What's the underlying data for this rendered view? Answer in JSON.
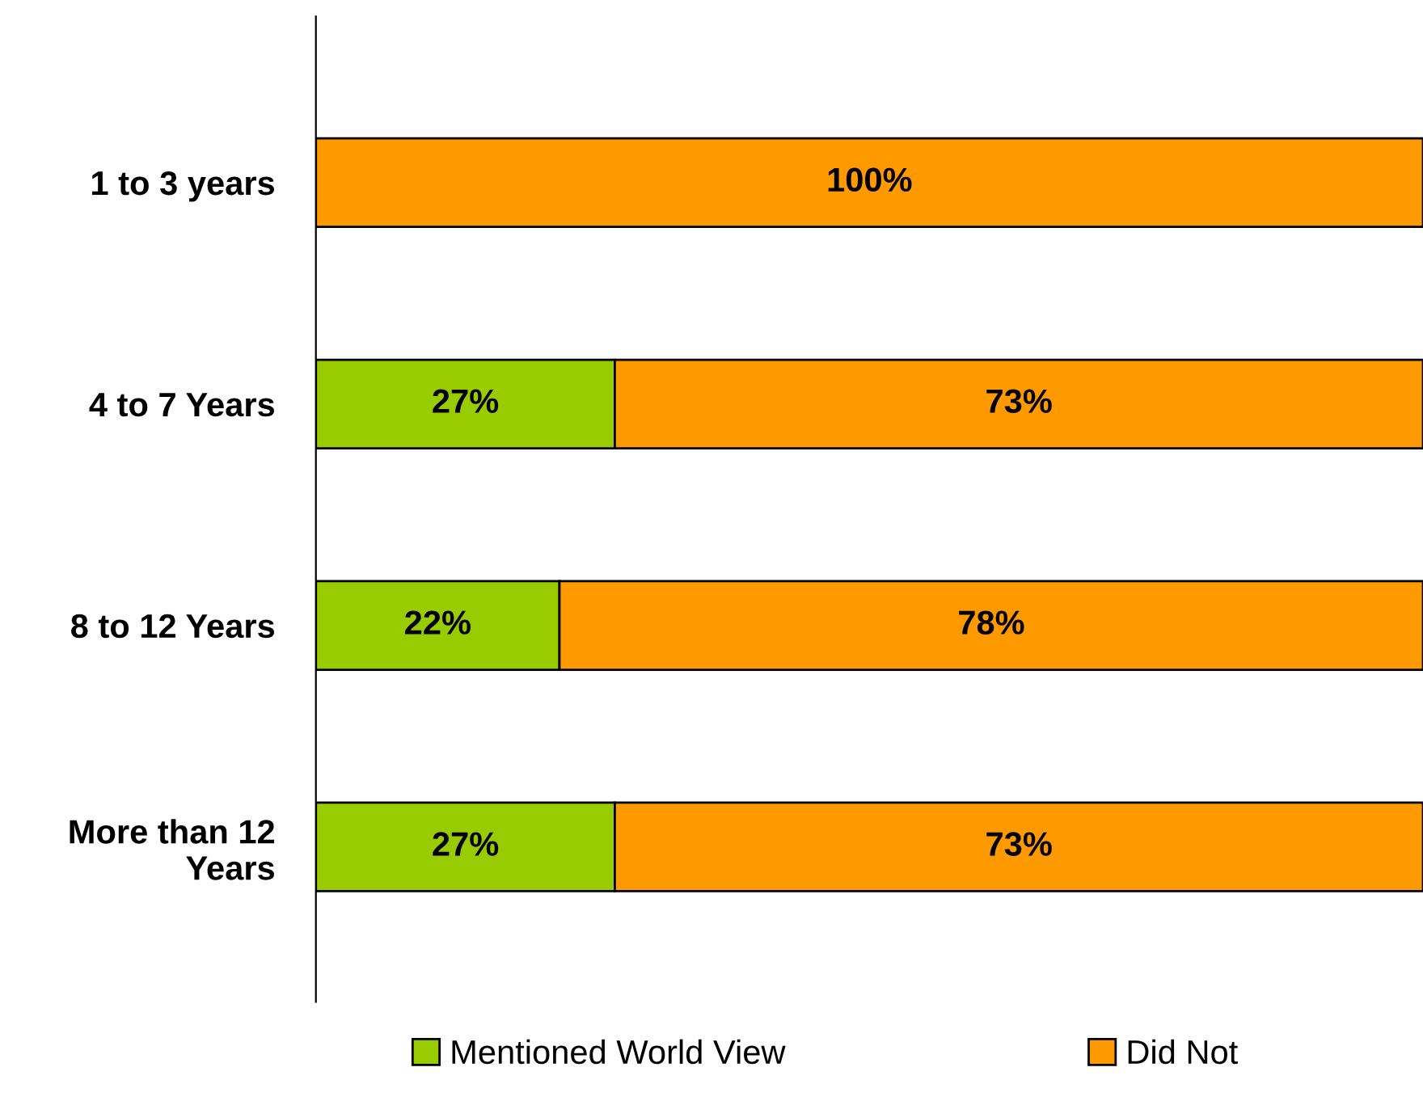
{
  "chart_data": {
    "type": "bar",
    "orientation": "horizontal",
    "stacked": true,
    "categories": [
      "1 to 3 years",
      "4 to 7 Years",
      "8 to 12 Years",
      "More than 12 Years"
    ],
    "series": [
      {
        "name": "Mentioned World View",
        "color": "#99cc00",
        "values": [
          0,
          27,
          22,
          27
        ],
        "value_labels": [
          null,
          "27%",
          "22%",
          "27%"
        ]
      },
      {
        "name": "Did Not",
        "color": "#ff9900",
        "values": [
          100,
          73,
          78,
          73
        ],
        "value_labels": [
          "100%",
          "73%",
          "78%",
          "73%"
        ]
      }
    ],
    "xlim": [
      0,
      100
    ],
    "tick_labels": "y",
    "grid": false,
    "legend": "bottom"
  }
}
